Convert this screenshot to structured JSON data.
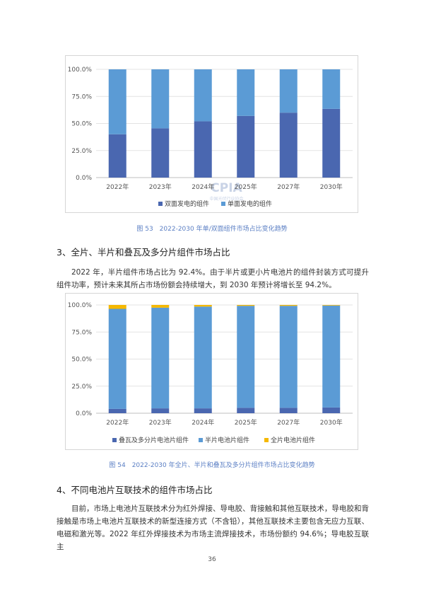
{
  "figure1": {
    "caption": "图 53　2022-2030 年单/双面组件市场占比变化趋势",
    "watermark": {
      "logo": "CPIA",
      "subtitle": "中国光伏行业协会"
    }
  },
  "section3": {
    "heading": "3、全片、半片和叠瓦及多分片组件市场占比",
    "paragraph": "2022 年，半片组件市场占比为 92.4%。由于半片或更小片电池片的组件封装方式可提升组件功率，预计未来其所占市场份额会持续增大，到 2030 年预计将增长至 94.2%。"
  },
  "figure2": {
    "caption": "图 54　2022-2030 年全片、半片和叠瓦及多分片组件市场占比变化趋势"
  },
  "section4": {
    "heading": "4、不同电池片互联技术的组件市场占比",
    "paragraph": "目前，市场上电池片互联技术分为红外焊接、导电胶、背接触和其他互联技术，导电胶和背接触是市场上电池片互联技术的新型连接方式（不含铅），其他互联技术主要包含无应力互联、电磁和激光等。2022 年红外焊接技术为市场主流焊接技术，市场份额约 94.6%；导电胶互联主"
  },
  "page_number": "36",
  "chart_data": [
    {
      "type": "bar",
      "stacked": true,
      "categories": [
        "2022年",
        "2023年",
        "2024年",
        "2025年",
        "2027年",
        "2030年"
      ],
      "series": [
        {
          "name": "双面发电的组件",
          "color": "#4a67b0",
          "values": [
            40.0,
            45.5,
            52.0,
            57.0,
            60.0,
            63.5
          ]
        },
        {
          "name": "单面发电的组件",
          "color": "#5b9bd5",
          "values": [
            60.0,
            54.5,
            48.0,
            43.0,
            40.0,
            36.5
          ]
        }
      ],
      "yticks": [
        "0.0%",
        "25.0%",
        "50.0%",
        "75.0%",
        "100.0%"
      ],
      "ylim": [
        0,
        100
      ],
      "grid": true,
      "legend": "bottom"
    },
    {
      "type": "bar",
      "stacked": true,
      "categories": [
        "2022年",
        "2023年",
        "2024年",
        "2025年",
        "2027年",
        "2030年"
      ],
      "series": [
        {
          "name": "叠瓦及多分片电池片组件",
          "color": "#4a67b0",
          "values": [
            4.0,
            4.5,
            4.5,
            5.0,
            5.0,
            5.3
          ]
        },
        {
          "name": "半片电池片组件",
          "color": "#5b9bd5",
          "values": [
            92.4,
            93.0,
            94.0,
            94.2,
            94.2,
            94.2
          ]
        },
        {
          "name": "全片电池片组件",
          "color": "#f5b800",
          "values": [
            3.6,
            2.5,
            1.5,
            0.8,
            0.8,
            0.5
          ]
        }
      ],
      "yticks": [
        "0.0%",
        "25.0%",
        "50.0%",
        "75.0%",
        "100.0%"
      ],
      "ylim": [
        0,
        100
      ],
      "grid": true,
      "legend": "bottom"
    }
  ]
}
